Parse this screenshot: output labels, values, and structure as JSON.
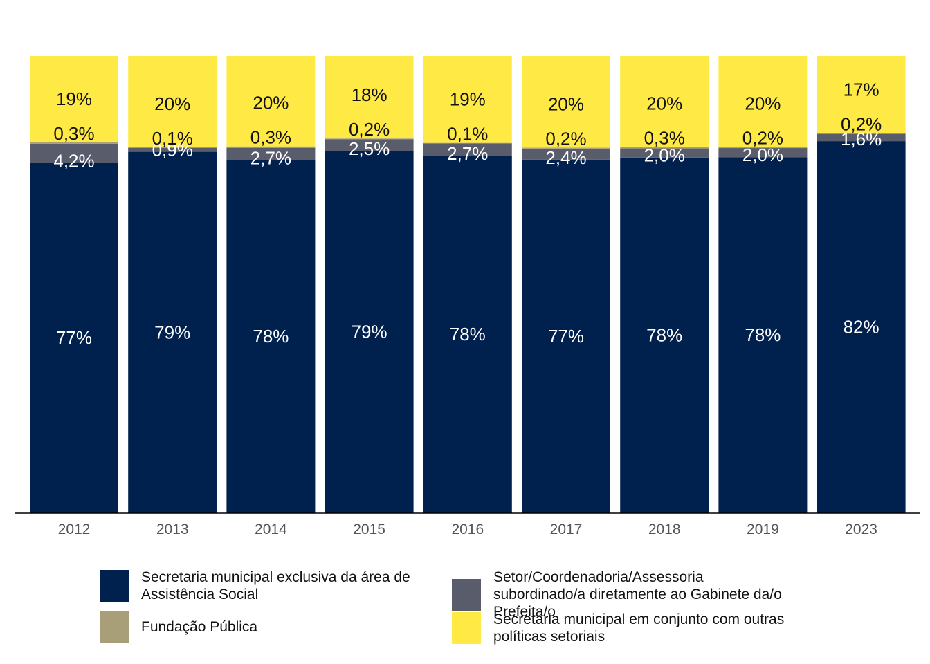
{
  "chart_data": {
    "type": "bar",
    "stacked": true,
    "title": "",
    "xlabel": "",
    "ylabel": "",
    "ylim": [
      0,
      100
    ],
    "grid": false,
    "categories": [
      "2012",
      "2013",
      "2014",
      "2015",
      "2016",
      "2017",
      "2018",
      "2019",
      "2023"
    ],
    "series": [
      {
        "name": "Secretaria municipal exclusiva da área de Assistência Social",
        "color": "#00204e",
        "label_color": "#ffffff",
        "values": [
          77,
          79,
          78,
          79,
          78,
          77,
          78,
          78,
          82
        ],
        "labels": [
          "77%",
          "79%",
          "78%",
          "79%",
          "78%",
          "77%",
          "78%",
          "78%",
          "82%"
        ]
      },
      {
        "name": "Setor/Coordenadoria/Assessoria subordinado/a diretamente ao Gabinete da/o Prefeita/o",
        "color": "#585c6b",
        "label_color": "#ffffff",
        "values": [
          4.2,
          0.9,
          2.7,
          2.5,
          2.7,
          2.4,
          2.0,
          2.0,
          1.6
        ],
        "labels": [
          "4,2%",
          "0,9%",
          "2,7%",
          "2,5%",
          "2,7%",
          "2,4%",
          "2,0%",
          "2,0%",
          "1,6%"
        ]
      },
      {
        "name": "Fundação Pública",
        "color": "#a89f78",
        "label_color": "#111111",
        "values": [
          0.3,
          0.1,
          0.3,
          0.2,
          0.1,
          0.2,
          0.3,
          0.2,
          0.2
        ],
        "labels": [
          "0,3%",
          "0,1%",
          "0,3%",
          "0,2%",
          "0,1%",
          "0,2%",
          "0,3%",
          "0,2%",
          "0,2%"
        ]
      },
      {
        "name": "Secretaria municipal em conjunto com outras políticas setoriais",
        "color": "#ffe945",
        "label_color": "#111111",
        "values": [
          19,
          20,
          20,
          18,
          19,
          20,
          20,
          20,
          17
        ],
        "labels": [
          "19%",
          "20%",
          "20%",
          "18%",
          "19%",
          "20%",
          "20%",
          "20%",
          "17%"
        ]
      }
    ],
    "legend": {
      "placement": "bottom",
      "order": [
        0,
        1,
        2,
        3
      ]
    }
  },
  "legend": {
    "items": [
      {
        "label": "Secretaria municipal exclusiva da área de Assistência Social",
        "color": "#00204e"
      },
      {
        "label": "Setor/Coordenadoria/Assessoria subordinado/a diretamente ao Gabinete da/o Prefeita/o",
        "color": "#585c6b"
      },
      {
        "label": "Fundação Pública",
        "color": "#a89f78"
      },
      {
        "label": "Secretaria municipal em conjunto com outras políticas setoriais",
        "color": "#ffe945"
      }
    ]
  }
}
